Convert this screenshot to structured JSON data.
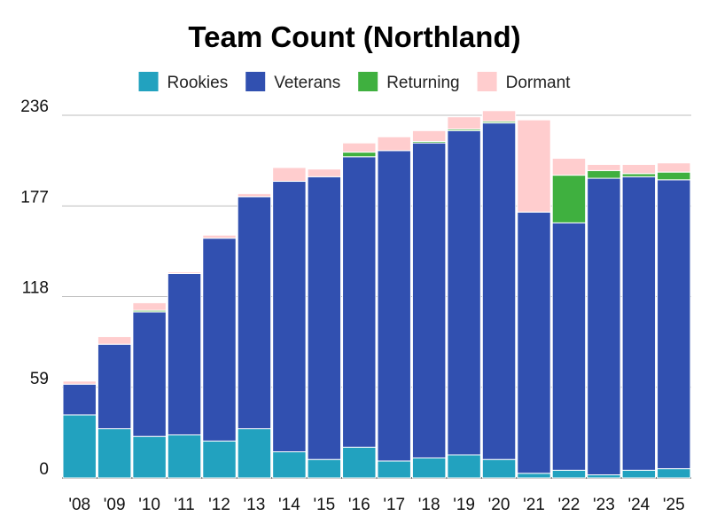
{
  "chart_data": {
    "type": "bar",
    "stacked": true,
    "title": "Team Count (Northland)",
    "xlabel": "",
    "ylabel": "",
    "categories": [
      "'08",
      "'09",
      "'10",
      "'11",
      "'12",
      "'13",
      "'14",
      "'15",
      "'16",
      "'17",
      "'18",
      "'19",
      "'20",
      "'21",
      "'22",
      "'23",
      "'24",
      "'25"
    ],
    "yticks": [
      "0",
      "59",
      "118",
      "177",
      "236"
    ],
    "ylim": [
      0,
      236
    ],
    "grid": true,
    "legend_position": "top",
    "series": [
      {
        "name": "Rookies",
        "color": "#22A2BF",
        "values": [
          41,
          32,
          27,
          28,
          24,
          32,
          17,
          12,
          20,
          11,
          13,
          15,
          12,
          3,
          5,
          2,
          5,
          6
        ]
      },
      {
        "name": "Veterans",
        "color": "#3150B0",
        "values": [
          20,
          55,
          81,
          105,
          132,
          151,
          176,
          184,
          189,
          202,
          205,
          211,
          219,
          170,
          161,
          193,
          191,
          188
        ]
      },
      {
        "name": "Returning",
        "color": "#3FB03F",
        "values": [
          0,
          0,
          1,
          0,
          0,
          0,
          0,
          0,
          3,
          0,
          1,
          1,
          1,
          0,
          31,
          5,
          2,
          5
        ]
      },
      {
        "name": "Dormant",
        "color": "#FFCDCE",
        "values": [
          2,
          5,
          5,
          1,
          2,
          2,
          9,
          5,
          6,
          9,
          7,
          8,
          7,
          60,
          11,
          4,
          6,
          6
        ]
      }
    ]
  }
}
